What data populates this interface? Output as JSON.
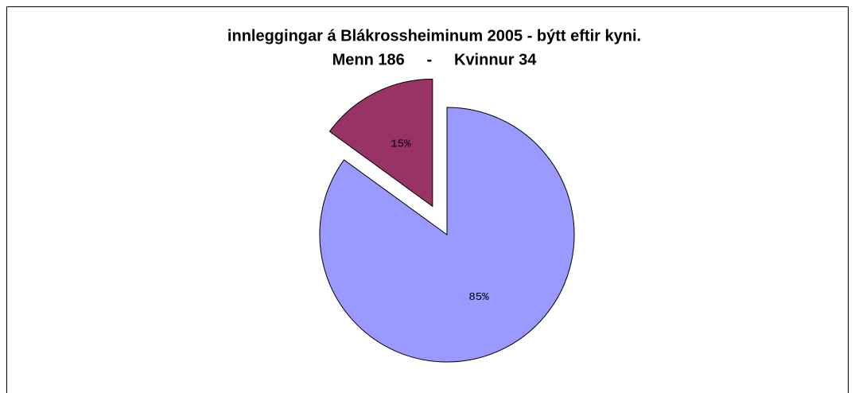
{
  "chart_data": {
    "type": "pie",
    "title": "innleggingar á Blákrossheiminum 2005 - býtt eftir kyni.",
    "subtitle": "Menn 186     -     Kvinnur 34",
    "values": [
      85,
      15
    ],
    "value_labels": [
      "85%",
      "15%"
    ],
    "colors": [
      "#9999ff",
      "#993366"
    ],
    "explode": [
      false,
      true
    ]
  }
}
